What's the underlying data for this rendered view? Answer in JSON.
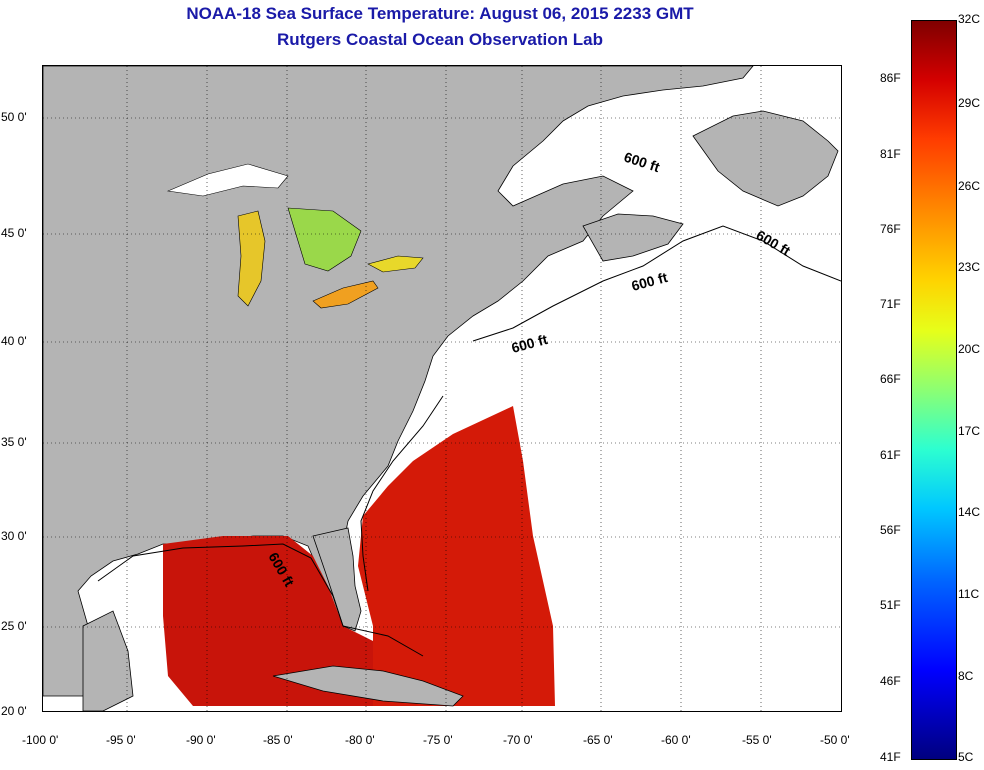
{
  "header": {
    "title": "NOAA-18 Sea Surface Temperature:  August 06, 2015 2233 GMT",
    "subtitle": "Rutgers Coastal Ocean Observation Lab"
  },
  "map": {
    "lon_ticks": [
      "-100 0'",
      "-95 0'",
      "-90 0'",
      "-85 0'",
      "-80 0'",
      "-75 0'",
      "-70 0'",
      "-65 0'",
      "-60 0'",
      "-55 0'",
      "-50 0'"
    ],
    "lat_ticks": [
      "50 0'",
      "45 0'",
      "40 0'",
      "35 0'",
      "30 0'",
      "25 0'",
      "20 0'"
    ],
    "contour_label": "600 ft",
    "land_color": "#b4b4b4",
    "no_data_color": "#ffffff"
  },
  "colorbar": {
    "celsius": [
      "32C",
      "29C",
      "26C",
      "23C",
      "20C",
      "17C",
      "14C",
      "11C",
      "8C",
      "5C"
    ],
    "fahrenheit": [
      "86F",
      "81F",
      "76F",
      "71F",
      "66F",
      "61F",
      "56F",
      "51F",
      "46F",
      "41F"
    ]
  }
}
